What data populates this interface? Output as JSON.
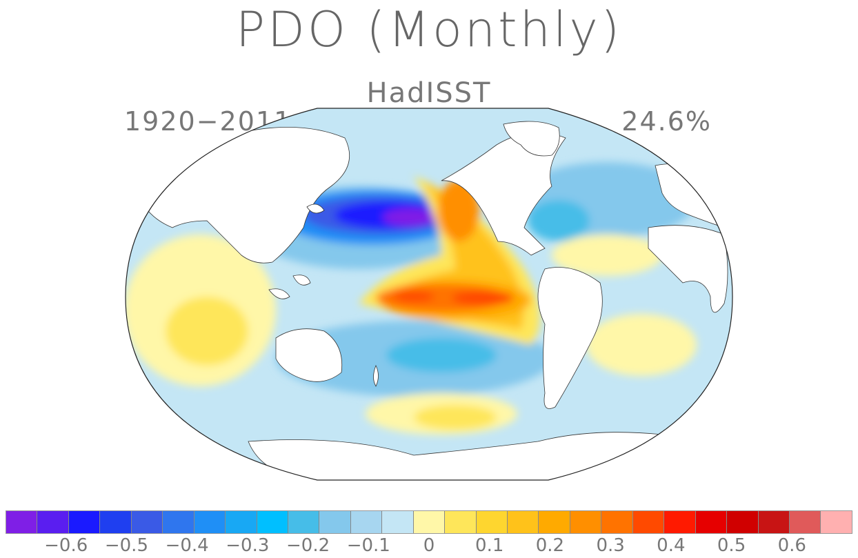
{
  "title": "PDO (Monthly)",
  "subtitle": "HadISST",
  "period": "1920−2011",
  "variance": "24.6%",
  "colorbar": {
    "colors": [
      "#7f1fe6",
      "#5a1ef0",
      "#1a1aff",
      "#1f3ff0",
      "#3a5ae6",
      "#2f76ee",
      "#1f8ff6",
      "#18a8f4",
      "#00bfff",
      "#46bde8",
      "#84c8ec",
      "#a7d6f0",
      "#c4e6f5",
      "#fff7a8",
      "#fee65a",
      "#fed62f",
      "#ffc21a",
      "#ffaa00",
      "#ff8f00",
      "#ff7300",
      "#ff4a00",
      "#ff1a00",
      "#e60000",
      "#d00000",
      "#c81414",
      "#e05a5a",
      "#ffb0b0"
    ],
    "tick_labels": [
      "−0.6",
      "−0.5",
      "−0.4",
      "−0.3",
      "−0.2",
      "−0.1",
      "0",
      "0.1",
      "0.2",
      "0.3",
      "0.4",
      "0.5",
      "0.6"
    ],
    "tick_values": [
      -0.6,
      -0.5,
      -0.4,
      -0.3,
      -0.2,
      -0.1,
      0,
      0.1,
      0.2,
      0.3,
      0.4,
      0.5,
      0.6
    ],
    "range": [
      -0.7,
      0.7
    ]
  }
}
